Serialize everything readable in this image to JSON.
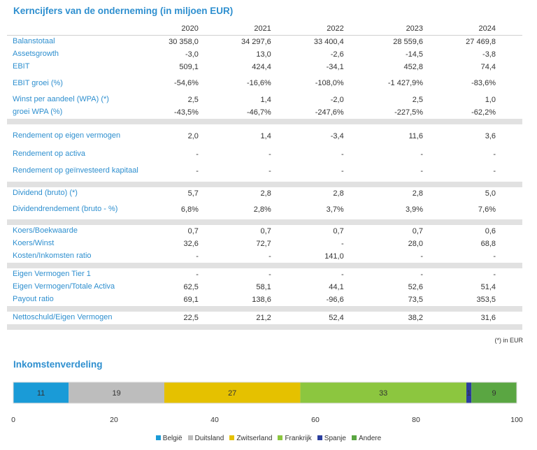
{
  "title": "Kerncijfers van de onderneming (in miljoen EUR)",
  "years": [
    "2020",
    "2021",
    "2022",
    "2023",
    "2024"
  ],
  "groups": [
    [
      {
        "label": "Balanstotaal",
        "values": [
          "30 358,0",
          "34 297,6",
          "33 400,4",
          "28 559,6",
          "27 469,8"
        ]
      },
      {
        "label": "Assetsgrowth",
        "values": [
          "-3,0",
          "13,0",
          "-2,6",
          "-14,5",
          "-3,8"
        ]
      },
      {
        "label": "EBIT",
        "values": [
          "509,1",
          "424,4",
          "-34,1",
          "452,8",
          "74,4"
        ]
      },
      {
        "label": "EBIT groei (%)",
        "values": [
          "-54,6%",
          "-16,6%",
          "-108,0%",
          "-1 427,9%",
          "-83,6%"
        ]
      },
      {
        "label": "Winst per aandeel (WPA) (*)",
        "values": [
          "2,5",
          "1,4",
          "-2,0",
          "2,5",
          "1,0"
        ]
      },
      {
        "label": "groei WPA (%)",
        "values": [
          "-43,5%",
          "-46,7%",
          "-247,6%",
          "-227,5%",
          "-62,2%"
        ]
      }
    ],
    [
      {
        "label": "Rendement op eigen vermogen",
        "values": [
          "2,0",
          "1,4",
          "-3,4",
          "11,6",
          "3,6"
        ]
      },
      {
        "label": "Rendement op activa",
        "values": [
          "-",
          "-",
          "-",
          "-",
          "-"
        ]
      },
      {
        "label": "Rendement op geïnvesteerd kapitaal",
        "values": [
          "-",
          "-",
          "-",
          "-",
          "-"
        ]
      }
    ],
    [
      {
        "label": "Dividend (bruto) (*)",
        "values": [
          "5,7",
          "2,8",
          "2,8",
          "2,8",
          "5,0"
        ]
      },
      {
        "label": "Dividendrendement (bruto - %)",
        "values": [
          "6,8%",
          "2,8%",
          "3,7%",
          "3,9%",
          "7,6%"
        ]
      }
    ],
    [
      {
        "label": "Koers/Boekwaarde",
        "values": [
          "0,7",
          "0,7",
          "0,7",
          "0,7",
          "0,6"
        ]
      },
      {
        "label": "Koers/Winst",
        "values": [
          "32,6",
          "72,7",
          "-",
          "28,0",
          "68,8"
        ]
      },
      {
        "label": "Kosten/Inkomsten ratio",
        "values": [
          "-",
          "-",
          "141,0",
          "-",
          "-"
        ]
      }
    ],
    [
      {
        "label": "Eigen Vermogen Tier 1",
        "values": [
          "-",
          "-",
          "-",
          "-",
          "-"
        ]
      },
      {
        "label": "Eigen Vermogen/Totale Activa",
        "values": [
          "62,5",
          "58,1",
          "44,1",
          "52,6",
          "51,4"
        ]
      },
      {
        "label": "Payout ratio",
        "values": [
          "69,1",
          "138,6",
          "-96,6",
          "73,5",
          "353,5"
        ]
      }
    ],
    [
      {
        "label": "Nettoschuld/Eigen Vermogen",
        "values": [
          "22,5",
          "21,2",
          "52,4",
          "38,2",
          "31,6"
        ]
      }
    ]
  ],
  "unit_note": "(*) in EUR",
  "chart_data": {
    "type": "bar",
    "title": "Inkomstenverdeling",
    "stacked": true,
    "orientation": "horizontal",
    "series": [
      {
        "name": "België",
        "value": 11,
        "color": "#1a9bd7"
      },
      {
        "name": "Duitsland",
        "value": 19,
        "color": "#bdbdbd"
      },
      {
        "name": "Zwitserland",
        "value": 27,
        "color": "#e5c100"
      },
      {
        "name": "Frankrijk",
        "value": 33,
        "color": "#8cc63f"
      },
      {
        "name": "Spanje",
        "value": 1,
        "color": "#2b3e9e"
      },
      {
        "name": "Andere",
        "value": 9,
        "color": "#5aa642"
      }
    ],
    "xlim": [
      0,
      100
    ],
    "xticks": [
      0,
      20,
      40,
      60,
      80,
      100
    ],
    "legend": "bottom",
    "grid": false
  }
}
